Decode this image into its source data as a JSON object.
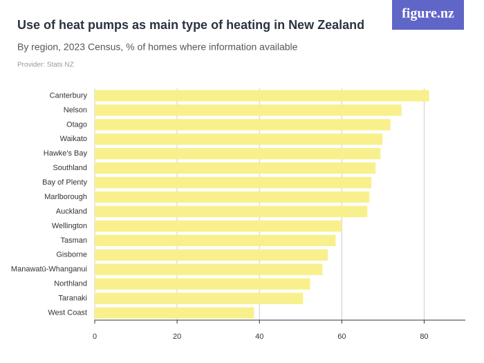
{
  "logo": "figure.nz",
  "chart_data": {
    "type": "bar",
    "orientation": "horizontal",
    "title": "Use of heat pumps as main type of heating in New Zealand",
    "subtitle": "By region, 2023 Census, % of homes where information available",
    "source": "Provider: Stats NZ",
    "categories": [
      "Canterbury",
      "Nelson",
      "Otago",
      "Waikato",
      "Hawke's Bay",
      "Southland",
      "Bay of Plenty",
      "Marlborough",
      "Auckland",
      "Wellington",
      "Tasman",
      "Gisborne",
      "Manawatū-Whanganui",
      "Northland",
      "Taranaki",
      "West Coast"
    ],
    "values": [
      81.2,
      74.5,
      71.8,
      69.9,
      69.4,
      68.2,
      67.2,
      66.7,
      66.2,
      60.0,
      58.5,
      56.6,
      55.3,
      52.3,
      50.6,
      38.7
    ],
    "color": "#f8f08c",
    "xlim": [
      0,
      90
    ],
    "xticks": [
      0,
      20,
      40,
      60,
      80
    ],
    "grid": true
  }
}
